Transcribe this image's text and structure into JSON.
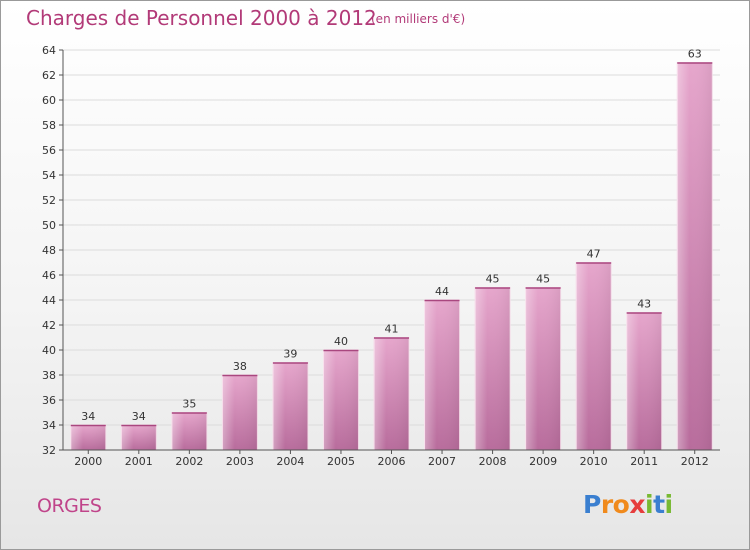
{
  "title": "Charges de Personnel 2000 à 2012",
  "subtitle": "(en milliers d'€)",
  "location": "ORGES",
  "logo": {
    "letters": [
      {
        "ch": "P",
        "color": "#3a7fd0"
      },
      {
        "ch": "r",
        "color": "#f08a1c"
      },
      {
        "ch": "o",
        "color": "#f08a1c"
      },
      {
        "ch": "x",
        "color": "#e63d3d"
      },
      {
        "ch": "i",
        "color": "#78b932"
      },
      {
        "ch": "t",
        "color": "#3a7fd0"
      },
      {
        "ch": "i",
        "color": "#78b932"
      }
    ]
  },
  "chart_data": {
    "type": "bar",
    "categories": [
      "2000",
      "2001",
      "2002",
      "2003",
      "2004",
      "2005",
      "2006",
      "2007",
      "2008",
      "2009",
      "2010",
      "2011",
      "2012"
    ],
    "values": [
      34,
      34,
      35,
      38,
      39,
      40,
      41,
      44,
      45,
      45,
      47,
      43,
      63
    ],
    "ylim": [
      32,
      64
    ],
    "yticks": [
      32,
      34,
      36,
      38,
      40,
      42,
      44,
      46,
      48,
      50,
      52,
      54,
      56,
      58,
      60,
      62,
      64
    ],
    "grid": true,
    "bar_color": "#c2609a",
    "bar_color_light": "#e8a8ce"
  }
}
